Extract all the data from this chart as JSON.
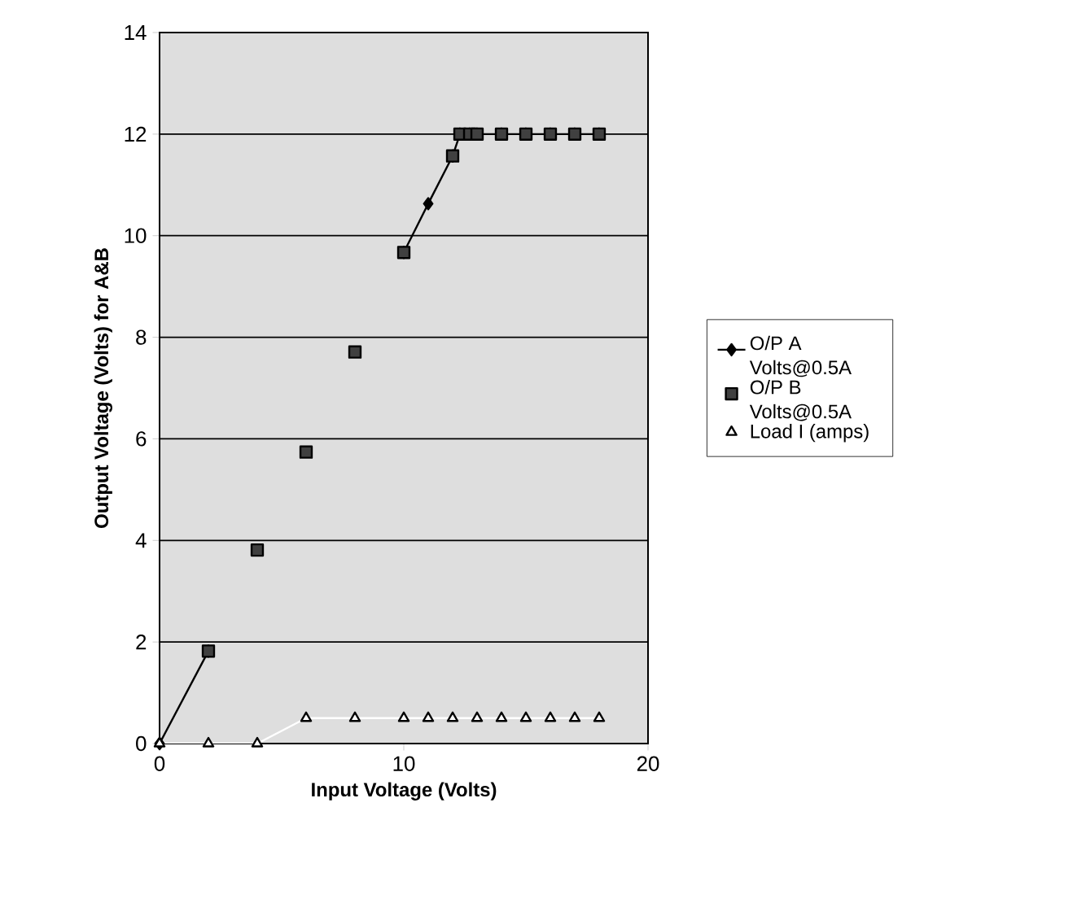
{
  "chart_data": {
    "type": "line",
    "xlabel": "Input Voltage (Volts)",
    "ylabel": "Output Voltage (Volts) for A&B",
    "xlim": [
      0,
      20
    ],
    "xticks": [
      0,
      10,
      20
    ],
    "ylim": [
      0,
      14
    ],
    "yticks": [
      0,
      2,
      4,
      6,
      8,
      10,
      12,
      14
    ],
    "grid": "y",
    "legend": "right",
    "series": [
      {
        "name": "O/P A Volts@0.5A",
        "type": "line",
        "color": "#000000",
        "marker": "diamond",
        "x": [
          0,
          2,
          4,
          6,
          8,
          10,
          11,
          12,
          12.3,
          12.7,
          13,
          14,
          15,
          16,
          17,
          18
        ],
        "values": [
          0,
          1.82,
          null,
          null,
          null,
          9.67,
          10.63,
          11.57,
          12,
          12,
          12,
          12,
          12,
          12,
          12,
          12
        ]
      },
      {
        "name": "O/P B Volts@0.5A",
        "type": "scatter",
        "color": "#404040",
        "marker": "square",
        "x": [
          2,
          4,
          6,
          8,
          10,
          12,
          12.3,
          12.7,
          13,
          14,
          15,
          16,
          17,
          18
        ],
        "values": [
          1.82,
          3.81,
          5.74,
          7.71,
          9.67,
          11.57,
          12,
          12,
          12,
          12,
          12,
          12,
          12,
          12
        ]
      },
      {
        "name": "Load I (amps)",
        "type": "line",
        "color": "#ffffff",
        "marker": "triangle",
        "x": [
          0,
          2,
          4,
          6,
          8,
          10,
          11,
          12,
          13,
          14,
          15,
          16,
          17,
          18
        ],
        "values": [
          0,
          0,
          0,
          0.5,
          0.5,
          0.5,
          0.5,
          0.5,
          0.5,
          0.5,
          0.5,
          0.5,
          0.5,
          0.5
        ]
      }
    ]
  }
}
